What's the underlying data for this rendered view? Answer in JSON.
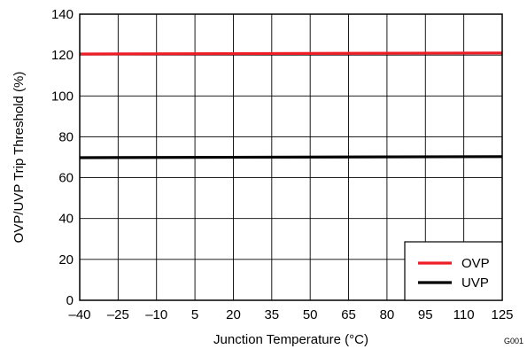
{
  "chart_data": {
    "type": "line",
    "xlabel": "Junction Temperature (°C)",
    "ylabel": "OVP/UVP Trip Threshold (%)",
    "xlim": [
      -40,
      125
    ],
    "ylim": [
      0,
      140
    ],
    "x_ticks": [
      -40,
      -25,
      -10,
      5,
      20,
      35,
      50,
      65,
      80,
      95,
      110,
      125
    ],
    "x_tick_labels": [
      "–40",
      "–25",
      "–10",
      "5",
      "20",
      "35",
      "50",
      "65",
      "80",
      "95",
      "110",
      "125"
    ],
    "y_ticks": [
      0,
      20,
      40,
      60,
      80,
      100,
      120,
      140
    ],
    "y_tick_labels": [
      "0",
      "20",
      "40",
      "60",
      "80",
      "100",
      "120",
      "140"
    ],
    "grid": true,
    "legend_position": "bottom-right",
    "series": [
      {
        "name": "OVP",
        "color": "#ee1c25",
        "x": [
          -40,
          125
        ],
        "y": [
          120.5,
          121.0
        ]
      },
      {
        "name": "UVP",
        "color": "#000000",
        "x": [
          -40,
          125
        ],
        "y": [
          69.8,
          70.3
        ]
      }
    ],
    "figure_id": "G001"
  }
}
